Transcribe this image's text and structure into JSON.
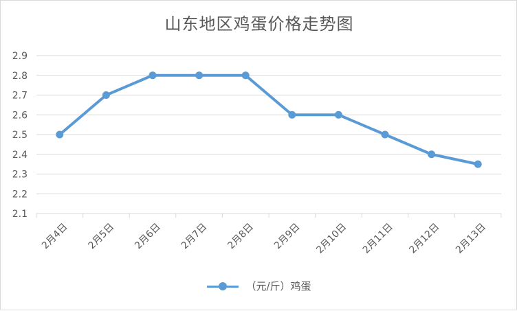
{
  "chart_data": {
    "type": "line",
    "title": "山东地区鸡蛋价格走势图",
    "categories": [
      "2月4日",
      "2月5日",
      "2月6日",
      "2月7日",
      "2月8日",
      "2月9日",
      "2月10日",
      "2月11日",
      "2月12日",
      "2月13日"
    ],
    "series": [
      {
        "name": "（元/斤）鸡蛋",
        "values": [
          2.5,
          2.7,
          2.8,
          2.8,
          2.8,
          2.6,
          2.6,
          2.5,
          2.4,
          2.35
        ],
        "color": "#5B9BD5"
      }
    ],
    "ylim": [
      2.1,
      2.9
    ],
    "yticks": [
      "2.1",
      "2.2",
      "2.3",
      "2.4",
      "2.5",
      "2.6",
      "2.7",
      "2.8",
      "2.9"
    ],
    "grid": true,
    "legend": "bottom"
  }
}
